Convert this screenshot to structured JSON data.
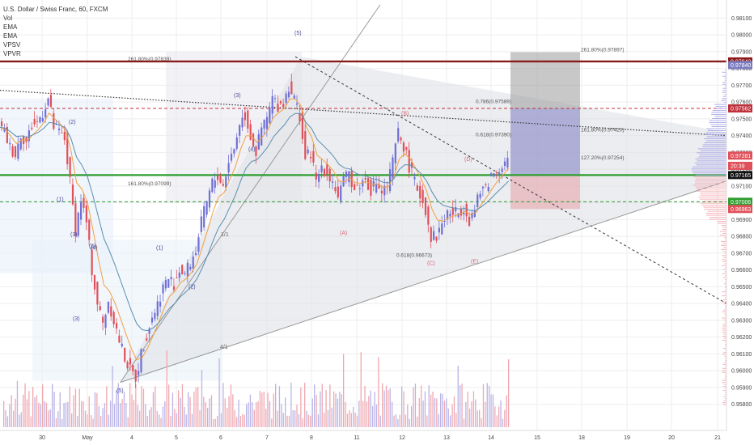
{
  "legend": {
    "title": "U.S. Dollar / Swiss Franc, 60, FXCM",
    "items": [
      "Vol",
      "EMA",
      "EMA",
      "VPSV",
      "VPVR"
    ]
  },
  "colors": {
    "up": "#6f6fd6",
    "down": "#e0505a",
    "ema_fast": "#f0a040",
    "ema_slow": "#5a8fb0",
    "resistance": "#8b1a1a",
    "support": "#2e9d2e",
    "grid": "#eeeeee"
  },
  "chart_data": {
    "type": "candlestick",
    "symbol": "USDCHF",
    "timeframe": "60",
    "x_labels": [
      "30",
      "May",
      "4",
      "5",
      "6",
      "7",
      "8",
      "11",
      "12",
      "13",
      "14",
      "15",
      "18",
      "19",
      "20",
      "21"
    ],
    "y_ticks": [
      "0.98100",
      "0.98000",
      "0.97900",
      "0.97800",
      "0.97700",
      "0.97600",
      "0.97500",
      "0.97400",
      "0.97300",
      "0.97200",
      "0.97100",
      "0.97000",
      "0.96900",
      "0.96800",
      "0.96700",
      "0.96600",
      "0.96500",
      "0.96400",
      "0.96300",
      "0.96200",
      "0.96100",
      "0.96000",
      "0.95900",
      "0.95800"
    ],
    "ylim": [
      0.9575,
      0.9815
    ],
    "price_labels": [
      {
        "value": "0.97842",
        "price": 0.97842,
        "color": "#8b1a1a"
      },
      {
        "value": "0.97840",
        "price": 0.9782,
        "color": "#7b7bc0"
      },
      {
        "value": "0.97562",
        "price": 0.97562,
        "color": "#c0303a"
      },
      {
        "value": "0.97281",
        "price": 0.97281,
        "color": "#e0505a"
      },
      {
        "value": "20:39",
        "price": 0.9722,
        "color": "#e0505a"
      },
      {
        "value": "0.97165",
        "price": 0.97165,
        "color": "#111111"
      },
      {
        "value": "0.97006",
        "price": 0.97006,
        "color": "#2e9d2e"
      },
      {
        "value": "0.96963",
        "price": 0.96963,
        "color": "#e0505a"
      }
    ],
    "fib_levels": [
      {
        "label": "261.80%(0.97839)",
        "price": 0.97839
      },
      {
        "label": "261.80%(0.97897)",
        "price": 0.97897
      },
      {
        "label": "0.786(0.97589)",
        "price": 0.97589
      },
      {
        "label": "0.618(0.97390)",
        "price": 0.9739
      },
      {
        "label": "161.80%(0.97420)",
        "price": 0.9742
      },
      {
        "label": "127.20%(0.97254)",
        "price": 0.97254
      },
      {
        "label": "161.80%(0.97099)",
        "price": 0.97099
      },
      {
        "label": "0.618(0.96673)",
        "price": 0.96673
      }
    ],
    "wave_labels": [
      "(5)",
      "(2)",
      "(3)",
      "(4)",
      "(1)",
      "(3)",
      "(4)",
      "(5)",
      "(1)",
      "(2)",
      "(3)",
      "(4)",
      "(B)",
      "(A)",
      "(D)",
      "(C)",
      "(E)"
    ],
    "gann_labels": [
      "1/1",
      "4/1"
    ],
    "horizontal_lines": [
      {
        "price": 0.97842,
        "style": "solid",
        "color": "#8b1a1a"
      },
      {
        "price": 0.97562,
        "style": "dashed",
        "color": "#c0303a"
      },
      {
        "price": 0.97165,
        "style": "solid",
        "color": "#2e9d2e"
      },
      {
        "price": 0.97006,
        "style": "dashed",
        "color": "#2e9d2e"
      }
    ],
    "series": [
      {
        "name": "USDCHF",
        "close_path": [
          [
            0,
            0.9745
          ],
          [
            2,
            0.9742
          ],
          [
            4,
            0.9733
          ],
          [
            6,
            0.9729
          ],
          [
            8,
            0.9741
          ],
          [
            10,
            0.9736
          ],
          [
            12,
            0.9746
          ],
          [
            14,
            0.9748
          ],
          [
            16,
            0.9754
          ],
          [
            18,
            0.9762
          ],
          [
            20,
            0.9745
          ],
          [
            22,
            0.9742
          ],
          [
            24,
            0.9738
          ],
          [
            26,
            0.9712
          ],
          [
            28,
            0.9684
          ],
          [
            30,
            0.9702
          ],
          [
            32,
            0.9688
          ],
          [
            34,
            0.966
          ],
          [
            36,
            0.964
          ],
          [
            38,
            0.9628
          ],
          [
            40,
            0.9642
          ],
          [
            42,
            0.963
          ],
          [
            44,
            0.9618
          ],
          [
            46,
            0.9608
          ],
          [
            48,
            0.96
          ],
          [
            50,
            0.9596
          ],
          [
            52,
            0.961
          ],
          [
            54,
            0.9622
          ],
          [
            56,
            0.9632
          ],
          [
            58,
            0.964
          ],
          [
            60,
            0.965
          ],
          [
            62,
            0.9655
          ],
          [
            64,
            0.9652
          ],
          [
            66,
            0.966
          ],
          [
            68,
            0.9658
          ],
          [
            70,
            0.9664
          ],
          [
            72,
            0.9672
          ],
          [
            74,
            0.9688
          ],
          [
            76,
            0.97
          ],
          [
            78,
            0.9712
          ],
          [
            80,
            0.9716
          ],
          [
            82,
            0.971
          ],
          [
            84,
            0.9725
          ],
          [
            86,
            0.9732
          ],
          [
            88,
            0.9748
          ],
          [
            90,
            0.9752
          ],
          [
            92,
            0.974
          ],
          [
            94,
            0.973
          ],
          [
            96,
            0.9744
          ],
          [
            98,
            0.975
          ],
          [
            100,
            0.9762
          ],
          [
            102,
            0.9758
          ],
          [
            104,
            0.976
          ],
          [
            106,
            0.977
          ],
          [
            108,
            0.9762
          ],
          [
            110,
            0.9752
          ],
          [
            112,
            0.9726
          ],
          [
            114,
            0.973
          ],
          [
            116,
            0.9712
          ],
          [
            118,
            0.9722
          ],
          [
            120,
            0.9718
          ],
          [
            122,
            0.9713
          ],
          [
            124,
            0.9704
          ],
          [
            126,
            0.9712
          ],
          [
            128,
            0.9718
          ],
          [
            130,
            0.9708
          ],
          [
            132,
            0.9711
          ],
          [
            134,
            0.9714
          ],
          [
            136,
            0.9708
          ],
          [
            138,
            0.9712
          ],
          [
            140,
            0.9706
          ],
          [
            142,
            0.971
          ],
          [
            144,
            0.9724
          ],
          [
            146,
            0.9742
          ],
          [
            148,
            0.9734
          ],
          [
            150,
            0.9722
          ],
          [
            152,
            0.9712
          ],
          [
            154,
            0.9705
          ],
          [
            156,
            0.9696
          ],
          [
            158,
            0.968
          ],
          [
            160,
            0.968
          ],
          [
            162,
            0.9688
          ],
          [
            164,
            0.9694
          ],
          [
            166,
            0.9694
          ],
          [
            168,
            0.9694
          ],
          [
            170,
            0.9698
          ],
          [
            172,
            0.969
          ],
          [
            174,
            0.9696
          ],
          [
            176,
            0.9706
          ],
          [
            178,
            0.971
          ],
          [
            180,
            0.9716
          ],
          [
            182,
            0.972
          ],
          [
            184,
            0.9722
          ],
          [
            186,
            0.9726
          ]
        ]
      }
    ],
    "volume_profile": "volume bars along bottom, horizontal volume profiles at right edge",
    "indicators": [
      "EMA",
      "EMA",
      "VPSV",
      "VPVR"
    ]
  }
}
